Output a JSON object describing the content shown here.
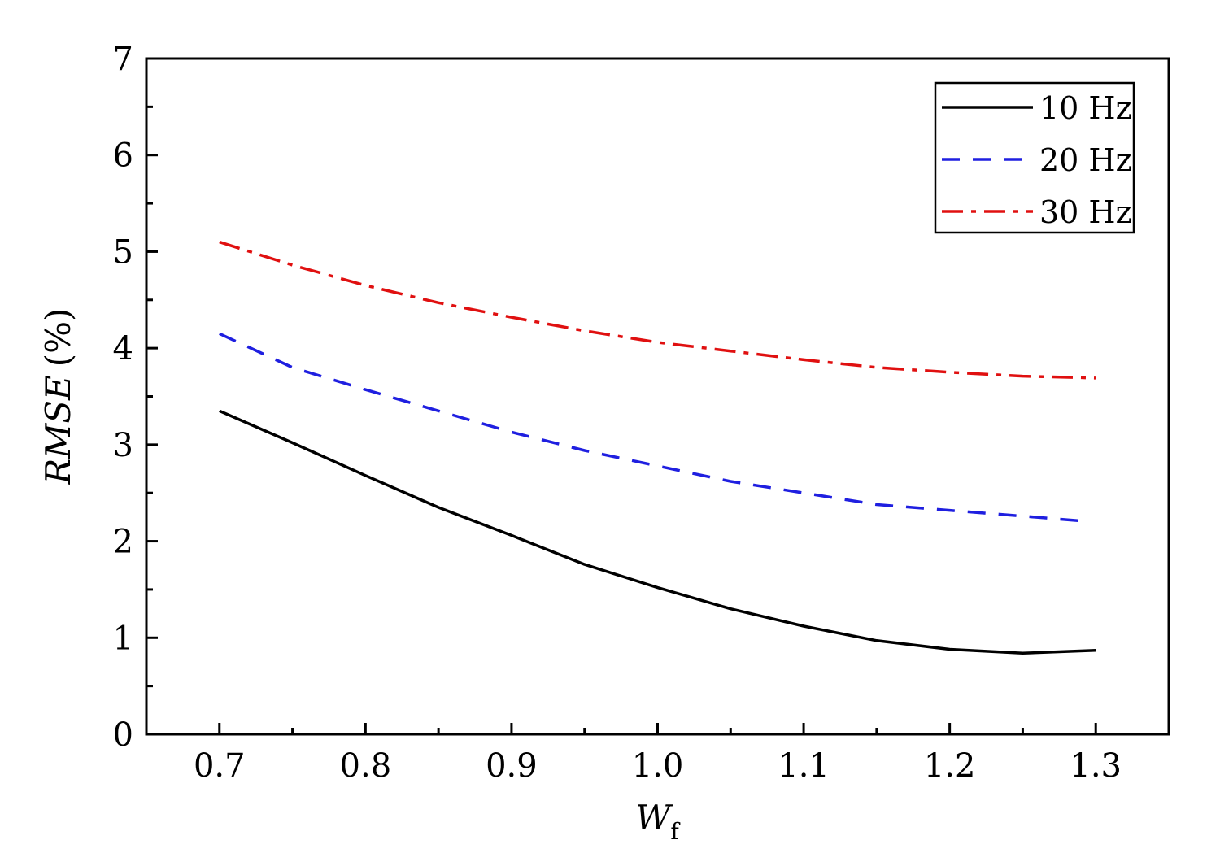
{
  "chart_data": {
    "type": "line",
    "xlabel": {
      "main": "W",
      "sub": "f"
    },
    "ylabel": {
      "italic": "RMSE",
      "unit": "(%)"
    },
    "xlim": [
      0.65,
      1.35
    ],
    "ylim": [
      0,
      7
    ],
    "x_ticks": [
      "0.7",
      "0.8",
      "0.9",
      "1.0",
      "1.1",
      "1.2",
      "1.3"
    ],
    "y_ticks": [
      "0",
      "1",
      "2",
      "3",
      "4",
      "5",
      "6",
      "7"
    ],
    "legend_position": "top-right",
    "series": [
      {
        "name": "10 Hz",
        "color": "#000000",
        "dash": "solid",
        "x": [
          0.7,
          0.75,
          0.8,
          0.85,
          0.9,
          0.95,
          1.0,
          1.05,
          1.1,
          1.15,
          1.2,
          1.25,
          1.3
        ],
        "values": [
          3.35,
          3.02,
          2.68,
          2.35,
          2.06,
          1.76,
          1.52,
          1.3,
          1.12,
          0.97,
          0.88,
          0.84,
          0.87
        ]
      },
      {
        "name": "20 Hz",
        "color": "#1f1fe0",
        "dash": "dashed",
        "x": [
          0.7,
          0.75,
          0.8,
          0.85,
          0.9,
          0.95,
          1.0,
          1.05,
          1.1,
          1.15,
          1.2,
          1.25,
          1.29
        ],
        "values": [
          4.15,
          3.8,
          3.57,
          3.35,
          3.13,
          2.94,
          2.78,
          2.62,
          2.5,
          2.38,
          2.32,
          2.26,
          2.21
        ]
      },
      {
        "name": "30 Hz",
        "color": "#e01010",
        "dash": "dashdot",
        "x": [
          0.7,
          0.75,
          0.8,
          0.85,
          0.9,
          0.95,
          1.0,
          1.05,
          1.1,
          1.15,
          1.2,
          1.25,
          1.3
        ],
        "values": [
          5.1,
          4.86,
          4.65,
          4.47,
          4.32,
          4.18,
          4.06,
          3.97,
          3.88,
          3.8,
          3.75,
          3.71,
          3.69
        ]
      }
    ]
  }
}
